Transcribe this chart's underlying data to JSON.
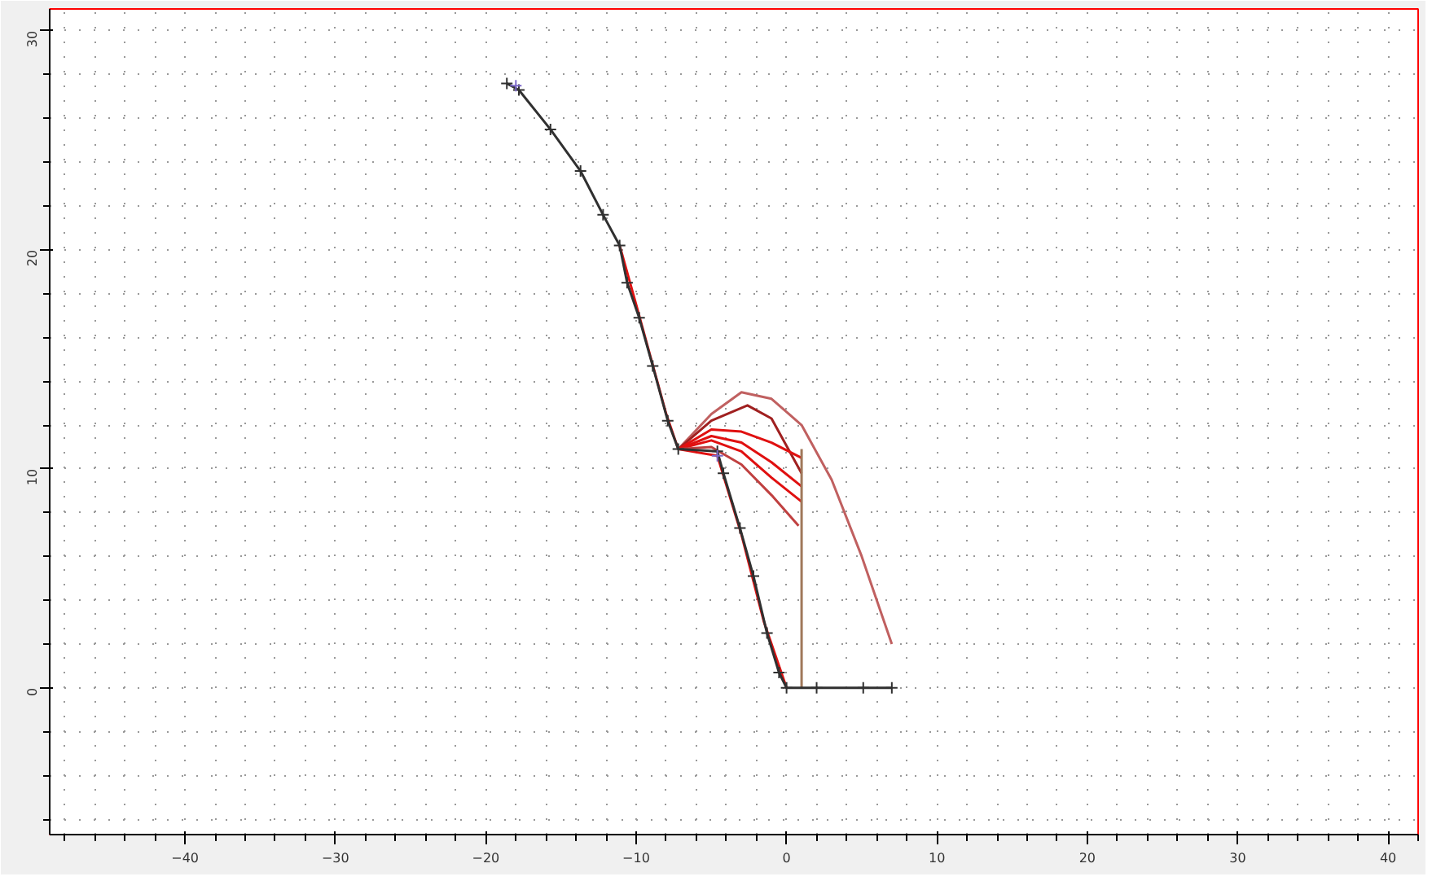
{
  "chart_data": {
    "type": "line",
    "xlim": [
      -49,
      42
    ],
    "ylim": [
      -6.7,
      31
    ],
    "xticks": [
      -40,
      -30,
      -20,
      -10,
      0,
      10,
      20,
      30,
      40
    ],
    "yticks": [
      0,
      10,
      20,
      30
    ],
    "grid": true,
    "line_style": "solid",
    "series": [
      {
        "color": "#e01010",
        "x": [
          -11.1,
          -10,
          -9,
          -8,
          -7.2
        ],
        "values": [
          20.2,
          17.5,
          15,
          12.5,
          10.9
        ]
      },
      {
        "color": "#e01010",
        "x": [
          -7.2,
          -4.6,
          -3,
          -1.5,
          0
        ],
        "values": [
          10.9,
          10.6,
          7,
          3,
          0
        ]
      },
      {
        "color": "#c06060",
        "x": [
          -7.2,
          -5,
          -3,
          -1,
          1,
          3,
          5,
          7
        ],
        "values": [
          10.9,
          12.5,
          13.5,
          13.2,
          12,
          9.5,
          6,
          2
        ]
      },
      {
        "color": "#a02020",
        "x": [
          -7.2,
          -5,
          -2.6,
          -1,
          1
        ],
        "values": [
          10.9,
          12.2,
          12.9,
          12.3,
          9.8
        ]
      },
      {
        "color": "#e01010",
        "x": [
          -7.2,
          -5,
          -3,
          -1,
          1
        ],
        "values": [
          10.9,
          11.8,
          11.7,
          11.2,
          10.5
        ]
      },
      {
        "color": "#e01010",
        "x": [
          -7.2,
          -5,
          -3,
          -1,
          1
        ],
        "values": [
          10.9,
          11.5,
          11.2,
          10.3,
          9.2
        ]
      },
      {
        "color": "#e01010",
        "x": [
          -7.2,
          -5,
          -3,
          -1,
          1
        ],
        "values": [
          10.9,
          11.3,
          10.8,
          9.6,
          8.5
        ]
      },
      {
        "color": "#c04040",
        "x": [
          -7.2,
          -5,
          -3,
          -1,
          0.8
        ],
        "values": [
          10.9,
          11.0,
          10.2,
          8.8,
          7.4
        ]
      },
      {
        "color": "#a0785a",
        "x": [
          1,
          1
        ],
        "values": [
          0,
          10.9
        ]
      },
      {
        "color": "#303030",
        "marker": "cross",
        "x": [
          -18.6,
          -17.8,
          -15.7,
          -13.7,
          -12.2,
          -11.1,
          -10.6,
          -9.8,
          -8.9,
          -7.9,
          -7.2,
          -4.6,
          -4.2,
          -3.1,
          -2.2,
          -1.3,
          -0.5,
          0,
          2,
          5.1,
          7
        ],
        "values": [
          27.6,
          27.3,
          25.5,
          23.6,
          21.6,
          20.2,
          18.5,
          16.9,
          14.7,
          12.2,
          10.9,
          10.8,
          9.8,
          7.3,
          5.1,
          2.5,
          0.7,
          0,
          0,
          0,
          0
        ]
      },
      {
        "type": "scatter",
        "color": "#7b68c8",
        "marker": "cross",
        "x": [
          -18,
          -4.6
        ],
        "values": [
          27.5,
          10.6
        ]
      }
    ]
  }
}
